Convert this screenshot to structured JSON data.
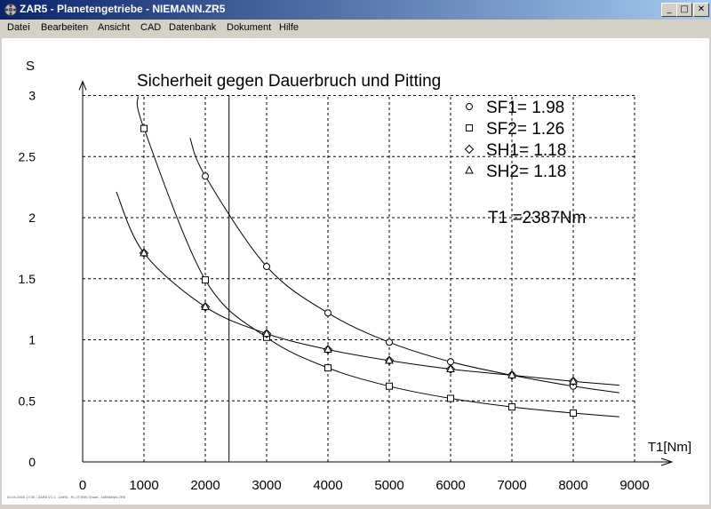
{
  "window": {
    "title": "ZAR5 - Planetengetriebe  -  NIEMANN.ZR5",
    "controls": {
      "minimize": "_",
      "maximize": "□",
      "close": "✕"
    }
  },
  "menu": [
    {
      "label": "Datei"
    },
    {
      "label": "Bearbeiten"
    },
    {
      "label": "Ansicht"
    },
    {
      "label": "CAD"
    },
    {
      "label": "Datenbank"
    },
    {
      "label": "Dokument"
    },
    {
      "label": "Hilfe"
    }
  ],
  "chart_data": {
    "type": "line",
    "title": "Sicherheit gegen Dauerbruch und Pitting",
    "xlabel": "T1[Nm]",
    "ylabel": "S",
    "xlim": [
      0,
      9000
    ],
    "ylim": [
      0,
      3
    ],
    "x_ticks": [
      "0",
      "1000",
      "2000",
      "3000",
      "4000",
      "5000",
      "6000",
      "7000",
      "8000",
      "9000"
    ],
    "y_ticks": [
      "0",
      "0.5",
      "1",
      "1.5",
      "2",
      "2.5",
      "3"
    ],
    "grid": true,
    "legend_position": "top-right",
    "series": [
      {
        "name": "SF1= 1.98",
        "marker": "circle",
        "x": [
          2000,
          3000,
          4000,
          5000,
          6000,
          7000,
          8000
        ],
        "y": [
          2.34,
          1.6,
          1.22,
          0.98,
          0.82,
          0.71,
          0.62
        ],
        "curve_from": 1750,
        "curve_to": 8750
      },
      {
        "name": "SF2= 1.26",
        "marker": "square",
        "x": [
          1000,
          2000,
          3000,
          4000,
          5000,
          6000,
          7000,
          8000
        ],
        "y": [
          2.73,
          1.49,
          1.02,
          0.77,
          0.62,
          0.52,
          0.45,
          0.4
        ],
        "curve_from": 900,
        "curve_to": 8750
      },
      {
        "name": "SH1= 1.18",
        "marker": "diamond",
        "x": [
          1000,
          2000,
          3000,
          4000,
          5000,
          6000,
          7000,
          8000
        ],
        "y": [
          1.71,
          1.27,
          1.05,
          0.92,
          0.83,
          0.76,
          0.71,
          0.66
        ],
        "curve_from": 550,
        "curve_to": 8750
      },
      {
        "name": "SH2= 1.18",
        "marker": "triangle",
        "x": [
          1000,
          2000,
          3000,
          4000,
          5000,
          6000,
          7000,
          8000
        ],
        "y": [
          1.71,
          1.27,
          1.05,
          0.92,
          0.83,
          0.76,
          0.71,
          0.66
        ],
        "curve_from": 550,
        "curve_to": 8750
      }
    ],
    "marker_line": {
      "x": 2387
    },
    "annotation": "T1 =2387Nm"
  },
  "status_line": "00.00.2000  17:35  -  ZAR5 V1.1  -  ZAR5 - PLOT.EBS  Sheet -  NIEMANN.ZR5"
}
